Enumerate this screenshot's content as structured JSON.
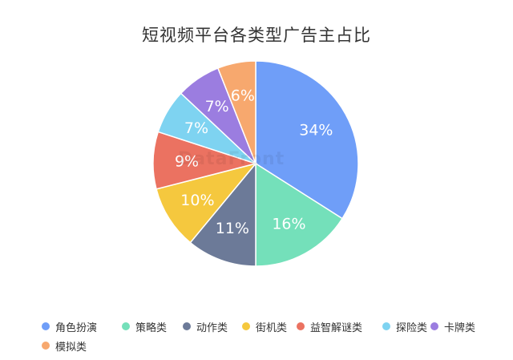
{
  "chart_data": {
    "type": "pie",
    "title": "短视频平台各类型广告主占比",
    "slices": [
      {
        "name": "角色扮演",
        "value": 34,
        "label": "34%",
        "color": "#6f9ef8"
      },
      {
        "name": "策略类",
        "value": 16,
        "label": "16%",
        "color": "#74e0ba"
      },
      {
        "name": "动作类",
        "value": 11,
        "label": "11%",
        "color": "#6c7a98"
      },
      {
        "name": "街机类",
        "value": 10,
        "label": "10%",
        "color": "#f5c83e"
      },
      {
        "name": "益智解谜类",
        "value": 9,
        "label": "9%",
        "color": "#eb7261"
      },
      {
        "name": "探险类",
        "value": 7,
        "label": "7%",
        "color": "#7ed3f1"
      },
      {
        "name": "卡牌类",
        "value": 7,
        "label": "7%",
        "color": "#9b7de0"
      },
      {
        "name": "模拟类",
        "value": 6,
        "label": "6%",
        "color": "#f7a86e"
      }
    ],
    "legend_position": "bottom"
  },
  "watermark": {
    "text": "DataFront"
  }
}
